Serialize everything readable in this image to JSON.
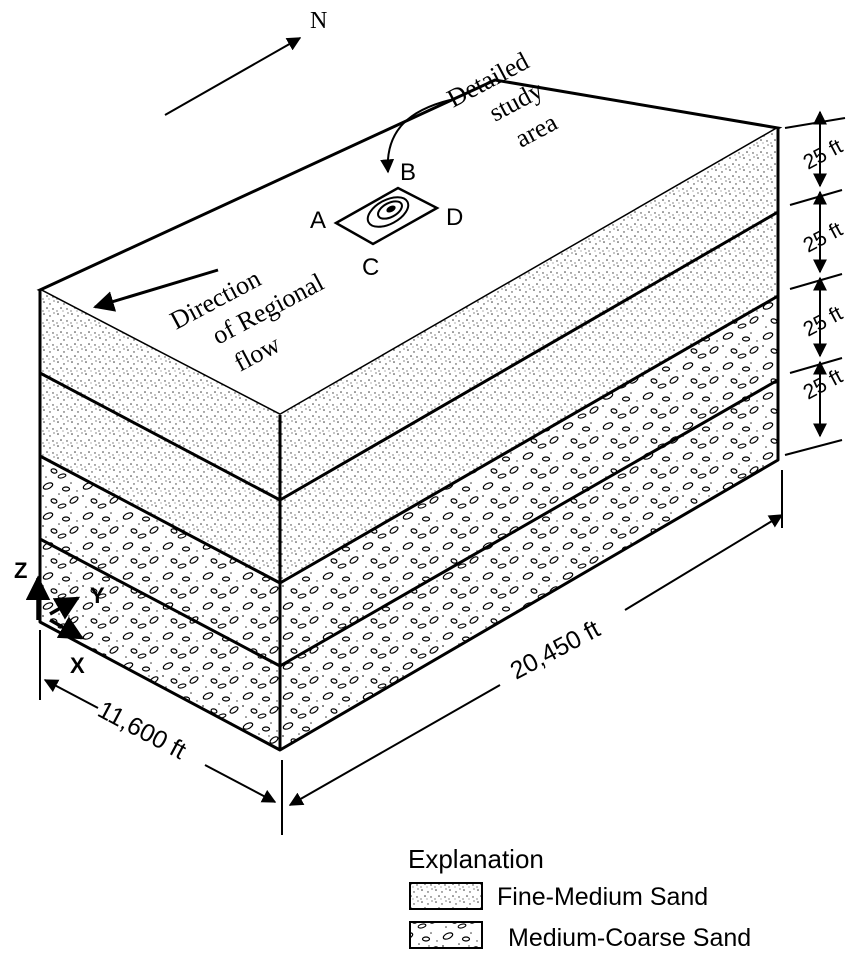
{
  "north_label": "N",
  "study_area": {
    "label_line1": "Detailed",
    "label_line2": "study",
    "label_line3": "area",
    "corner_a": "A",
    "corner_b": "B",
    "corner_c": "C",
    "corner_d": "D"
  },
  "regional_flow": {
    "line1": "Direction",
    "line2": "of Regional",
    "line3": "flow"
  },
  "layer_thickness_labels": [
    "25 ft",
    "25 ft",
    "25 ft",
    "25 ft"
  ],
  "dimensions": {
    "length": "20,450 ft",
    "width": "11,600 ft"
  },
  "axes": {
    "z": "Z",
    "y": "Y",
    "x": "X"
  },
  "legend": {
    "title": "Explanation",
    "items": [
      {
        "label": "Fine-Medium Sand",
        "pattern": "stipple"
      },
      {
        "label": "Medium-Coarse Sand",
        "pattern": "pebbles"
      }
    ]
  }
}
